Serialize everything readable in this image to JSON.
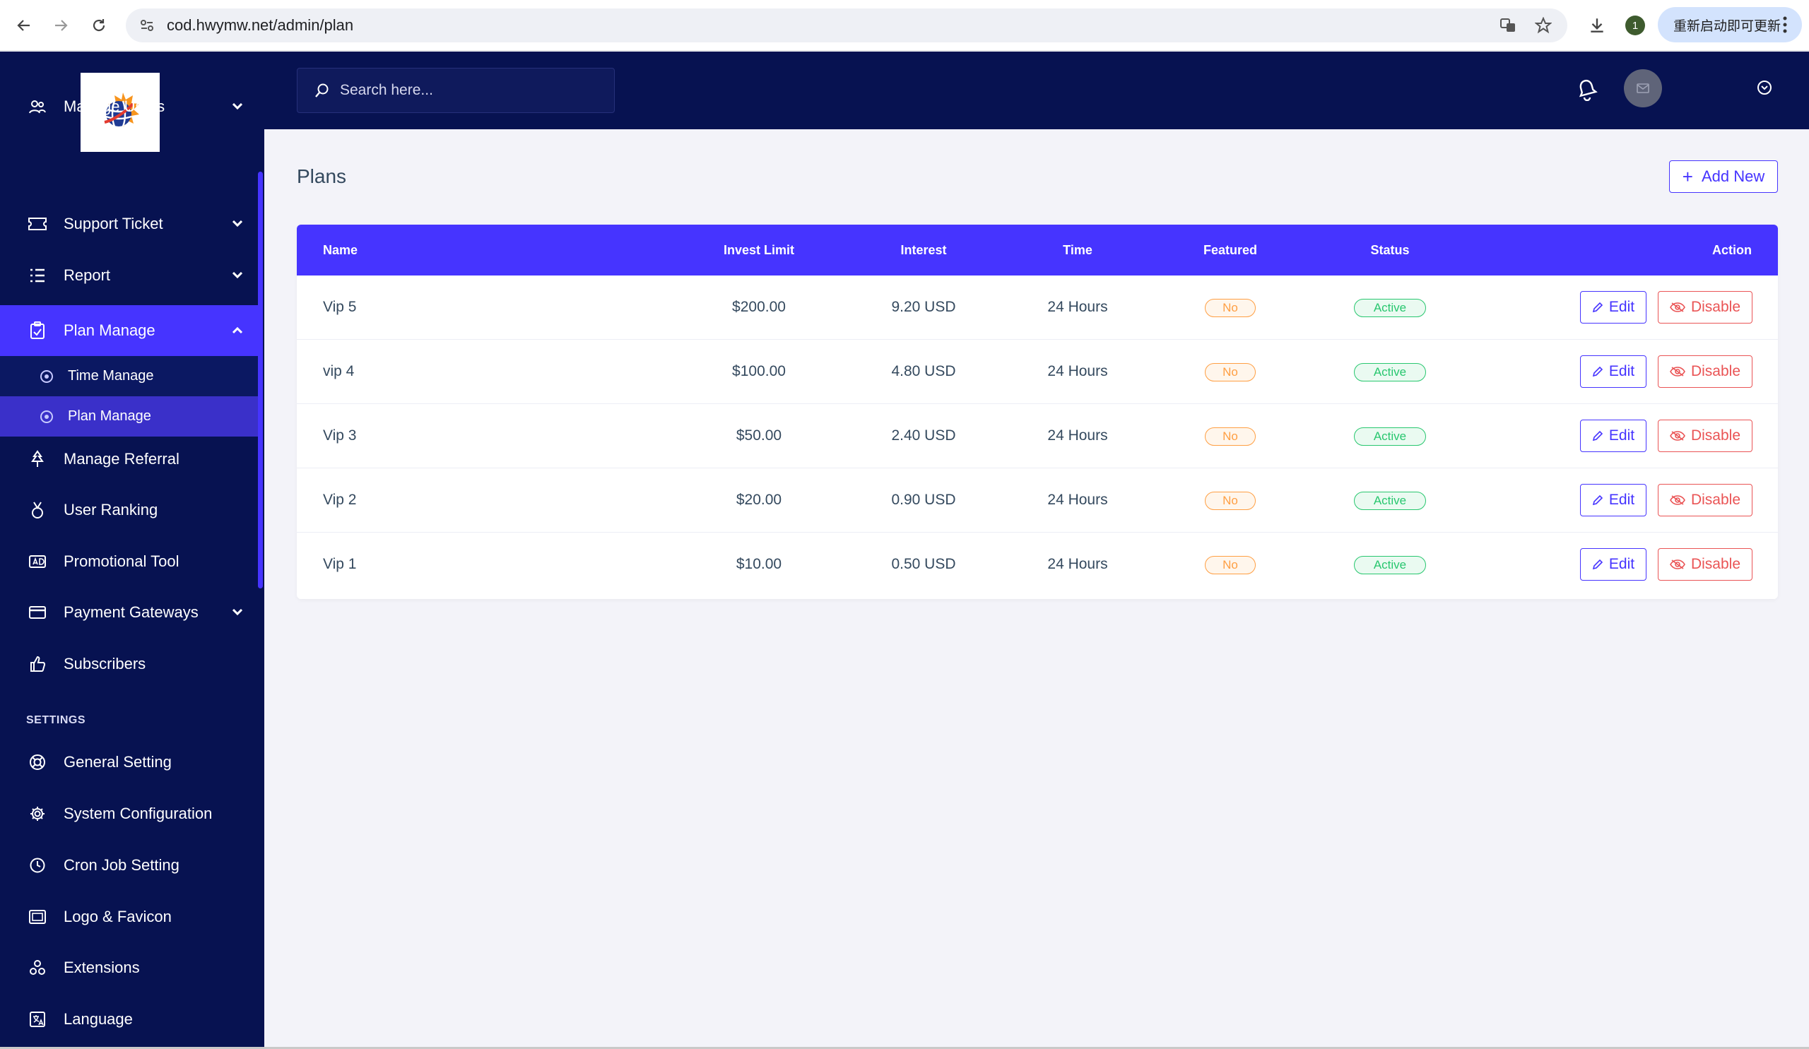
{
  "browser": {
    "url": "cod.hwymw.net/admin/plan",
    "update_label": "重新启动即可更新",
    "profile_badge": "1"
  },
  "sidebar": {
    "items": [
      {
        "label": "Manage Users",
        "icon": "users-icon",
        "caret": "down"
      },
      {
        "label": "Support Ticket",
        "icon": "ticket-icon",
        "caret": "down"
      },
      {
        "label": "Report",
        "icon": "list-icon",
        "caret": "down"
      },
      {
        "label": "Plan Manage",
        "icon": "clipboard-icon",
        "caret": "up",
        "active": true
      },
      {
        "label": "Manage Referral",
        "icon": "tree-icon"
      },
      {
        "label": "User Ranking",
        "icon": "medal-icon"
      },
      {
        "label": "Promotional Tool",
        "icon": "ad-icon"
      },
      {
        "label": "Payment Gateways",
        "icon": "credit-card-icon",
        "caret": "down"
      },
      {
        "label": "Subscribers",
        "icon": "thumbs-up-icon"
      }
    ],
    "submenu": [
      {
        "label": "Time Manage"
      },
      {
        "label": "Plan Manage",
        "active": true
      }
    ],
    "settings_title": "SETTINGS",
    "settings_items": [
      {
        "label": "General Setting",
        "icon": "life-ring-icon"
      },
      {
        "label": "System Configuration",
        "icon": "gear-icon"
      },
      {
        "label": "Cron Job Setting",
        "icon": "clock-icon"
      },
      {
        "label": "Logo & Favicon",
        "icon": "image-icon"
      },
      {
        "label": "Extensions",
        "icon": "puzzle-icon"
      },
      {
        "label": "Language",
        "icon": "language-icon"
      }
    ]
  },
  "topbar": {
    "search_placeholder": "Search here..."
  },
  "main": {
    "title": "Plans",
    "add_new_label": "Add New",
    "columns": [
      "Name",
      "Invest Limit",
      "Interest",
      "Time",
      "Featured",
      "Status",
      "Action"
    ],
    "rows": [
      {
        "name": "Vip 5",
        "invest_limit": "$200.00",
        "interest": "9.20 USD",
        "time": "24 Hours",
        "featured": "No",
        "status": "Active"
      },
      {
        "name": "vip 4",
        "invest_limit": "$100.00",
        "interest": "4.80 USD",
        "time": "24 Hours",
        "featured": "No",
        "status": "Active"
      },
      {
        "name": "Vip 3",
        "invest_limit": "$50.00",
        "interest": "2.40 USD",
        "time": "24 Hours",
        "featured": "No",
        "status": "Active"
      },
      {
        "name": "Vip 2",
        "invest_limit": "$20.00",
        "interest": "0.90 USD",
        "time": "24 Hours",
        "featured": "No",
        "status": "Active"
      },
      {
        "name": "Vip 1",
        "invest_limit": "$10.00",
        "interest": "0.50 USD",
        "time": "24 Hours",
        "featured": "No",
        "status": "Active"
      }
    ],
    "edit_label": "Edit",
    "disable_label": "Disable"
  },
  "colors": {
    "sidebar_bg": "#071251",
    "accent": "#4634ff",
    "danger": "#ea5455",
    "warning": "#ff9f43",
    "success": "#28c76f"
  }
}
